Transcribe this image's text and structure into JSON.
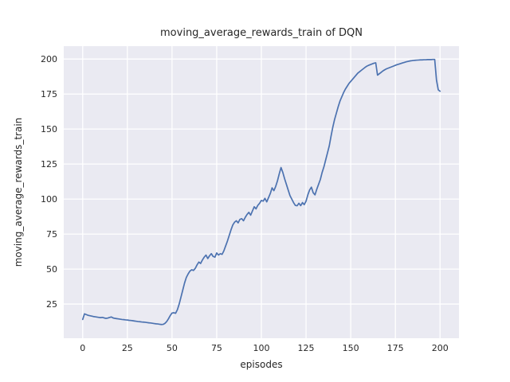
{
  "chart_data": {
    "type": "line",
    "title": "moving_average_rewards_train of DQN",
    "xlabel": "episodes",
    "ylabel": "moving_average_rewards_train",
    "x_ticks": [
      0,
      25,
      50,
      75,
      100,
      125,
      150,
      175,
      200
    ],
    "y_ticks": [
      25,
      50,
      75,
      100,
      125,
      150,
      175,
      200
    ],
    "xlim": [
      -10.6,
      210.6
    ],
    "ylim": [
      0.6,
      209.2
    ],
    "grid": true,
    "legend": "none",
    "colors": {
      "line": "#4c72b0",
      "axes_background": "#eaeaf2",
      "grid_lines": "#ffffff",
      "figure_background": "#ffffff",
      "text": "#262626"
    },
    "series": [
      {
        "name": "moving_average_rewards_train",
        "x_encoding": "index_is_episode",
        "x_min": 0,
        "x_max": 200,
        "values": [
          14.0,
          18.0,
          17.5,
          17.0,
          16.7,
          16.4,
          16.1,
          15.9,
          15.7,
          15.5,
          15.3,
          15.5,
          15.1,
          14.8,
          15.0,
          15.4,
          15.8,
          15.1,
          14.8,
          14.6,
          14.4,
          14.2,
          14.0,
          13.9,
          13.7,
          13.6,
          13.4,
          13.3,
          13.1,
          12.9,
          12.7,
          12.5,
          12.4,
          12.2,
          12.1,
          12.0,
          11.8,
          11.6,
          11.5,
          11.3,
          11.1,
          10.9,
          10.8,
          10.6,
          10.4,
          10.5,
          11.2,
          12.5,
          14.5,
          16.8,
          18.6,
          18.8,
          18.4,
          21.0,
          25.0,
          30.0,
          35.0,
          40.0,
          44.0,
          46.5,
          48.5,
          49.5,
          49.0,
          50.5,
          53.0,
          55.0,
          54.0,
          56.5,
          58.5,
          60.0,
          57.5,
          59.5,
          61.0,
          59.0,
          58.5,
          61.5,
          60.0,
          61.0,
          60.5,
          63.0,
          66.5,
          70.0,
          74.0,
          78.0,
          81.5,
          83.5,
          84.5,
          83.0,
          85.5,
          86.0,
          84.5,
          87.0,
          89.0,
          90.5,
          88.5,
          91.5,
          94.5,
          93.0,
          95.5,
          97.0,
          99.0,
          98.5,
          100.5,
          98.0,
          101.0,
          104.0,
          108.0,
          106.0,
          109.0,
          113.0,
          118.0,
          122.5,
          119.0,
          114.5,
          110.5,
          106.5,
          102.5,
          100.0,
          97.5,
          95.5,
          95.2,
          97.0,
          95.3,
          97.5,
          96.0,
          98.5,
          103.0,
          106.5,
          108.5,
          104.5,
          103.0,
          107.0,
          110.5,
          114.0,
          119.0,
          123.0,
          128.0,
          133.0,
          138.0,
          145.0,
          151.5,
          157.0,
          161.5,
          166.0,
          170.0,
          173.0,
          176.0,
          178.5,
          180.5,
          182.5,
          184.0,
          185.5,
          187.0,
          188.5,
          190.0,
          191.0,
          192.0,
          193.0,
          194.0,
          194.9,
          195.5,
          196.0,
          196.5,
          197.0,
          197.3,
          188.5,
          189.5,
          190.5,
          191.5,
          192.3,
          193.0,
          193.5,
          194.0,
          194.5,
          195.0,
          195.5,
          196.0,
          196.4,
          196.8,
          197.2,
          197.6,
          198.0,
          198.3,
          198.6,
          198.8,
          199.0,
          199.1,
          199.2,
          199.3,
          199.4,
          199.4,
          199.5,
          199.5,
          199.6,
          199.6,
          199.6,
          199.7,
          199.7,
          185.0,
          178.0,
          177.0
        ]
      }
    ]
  }
}
